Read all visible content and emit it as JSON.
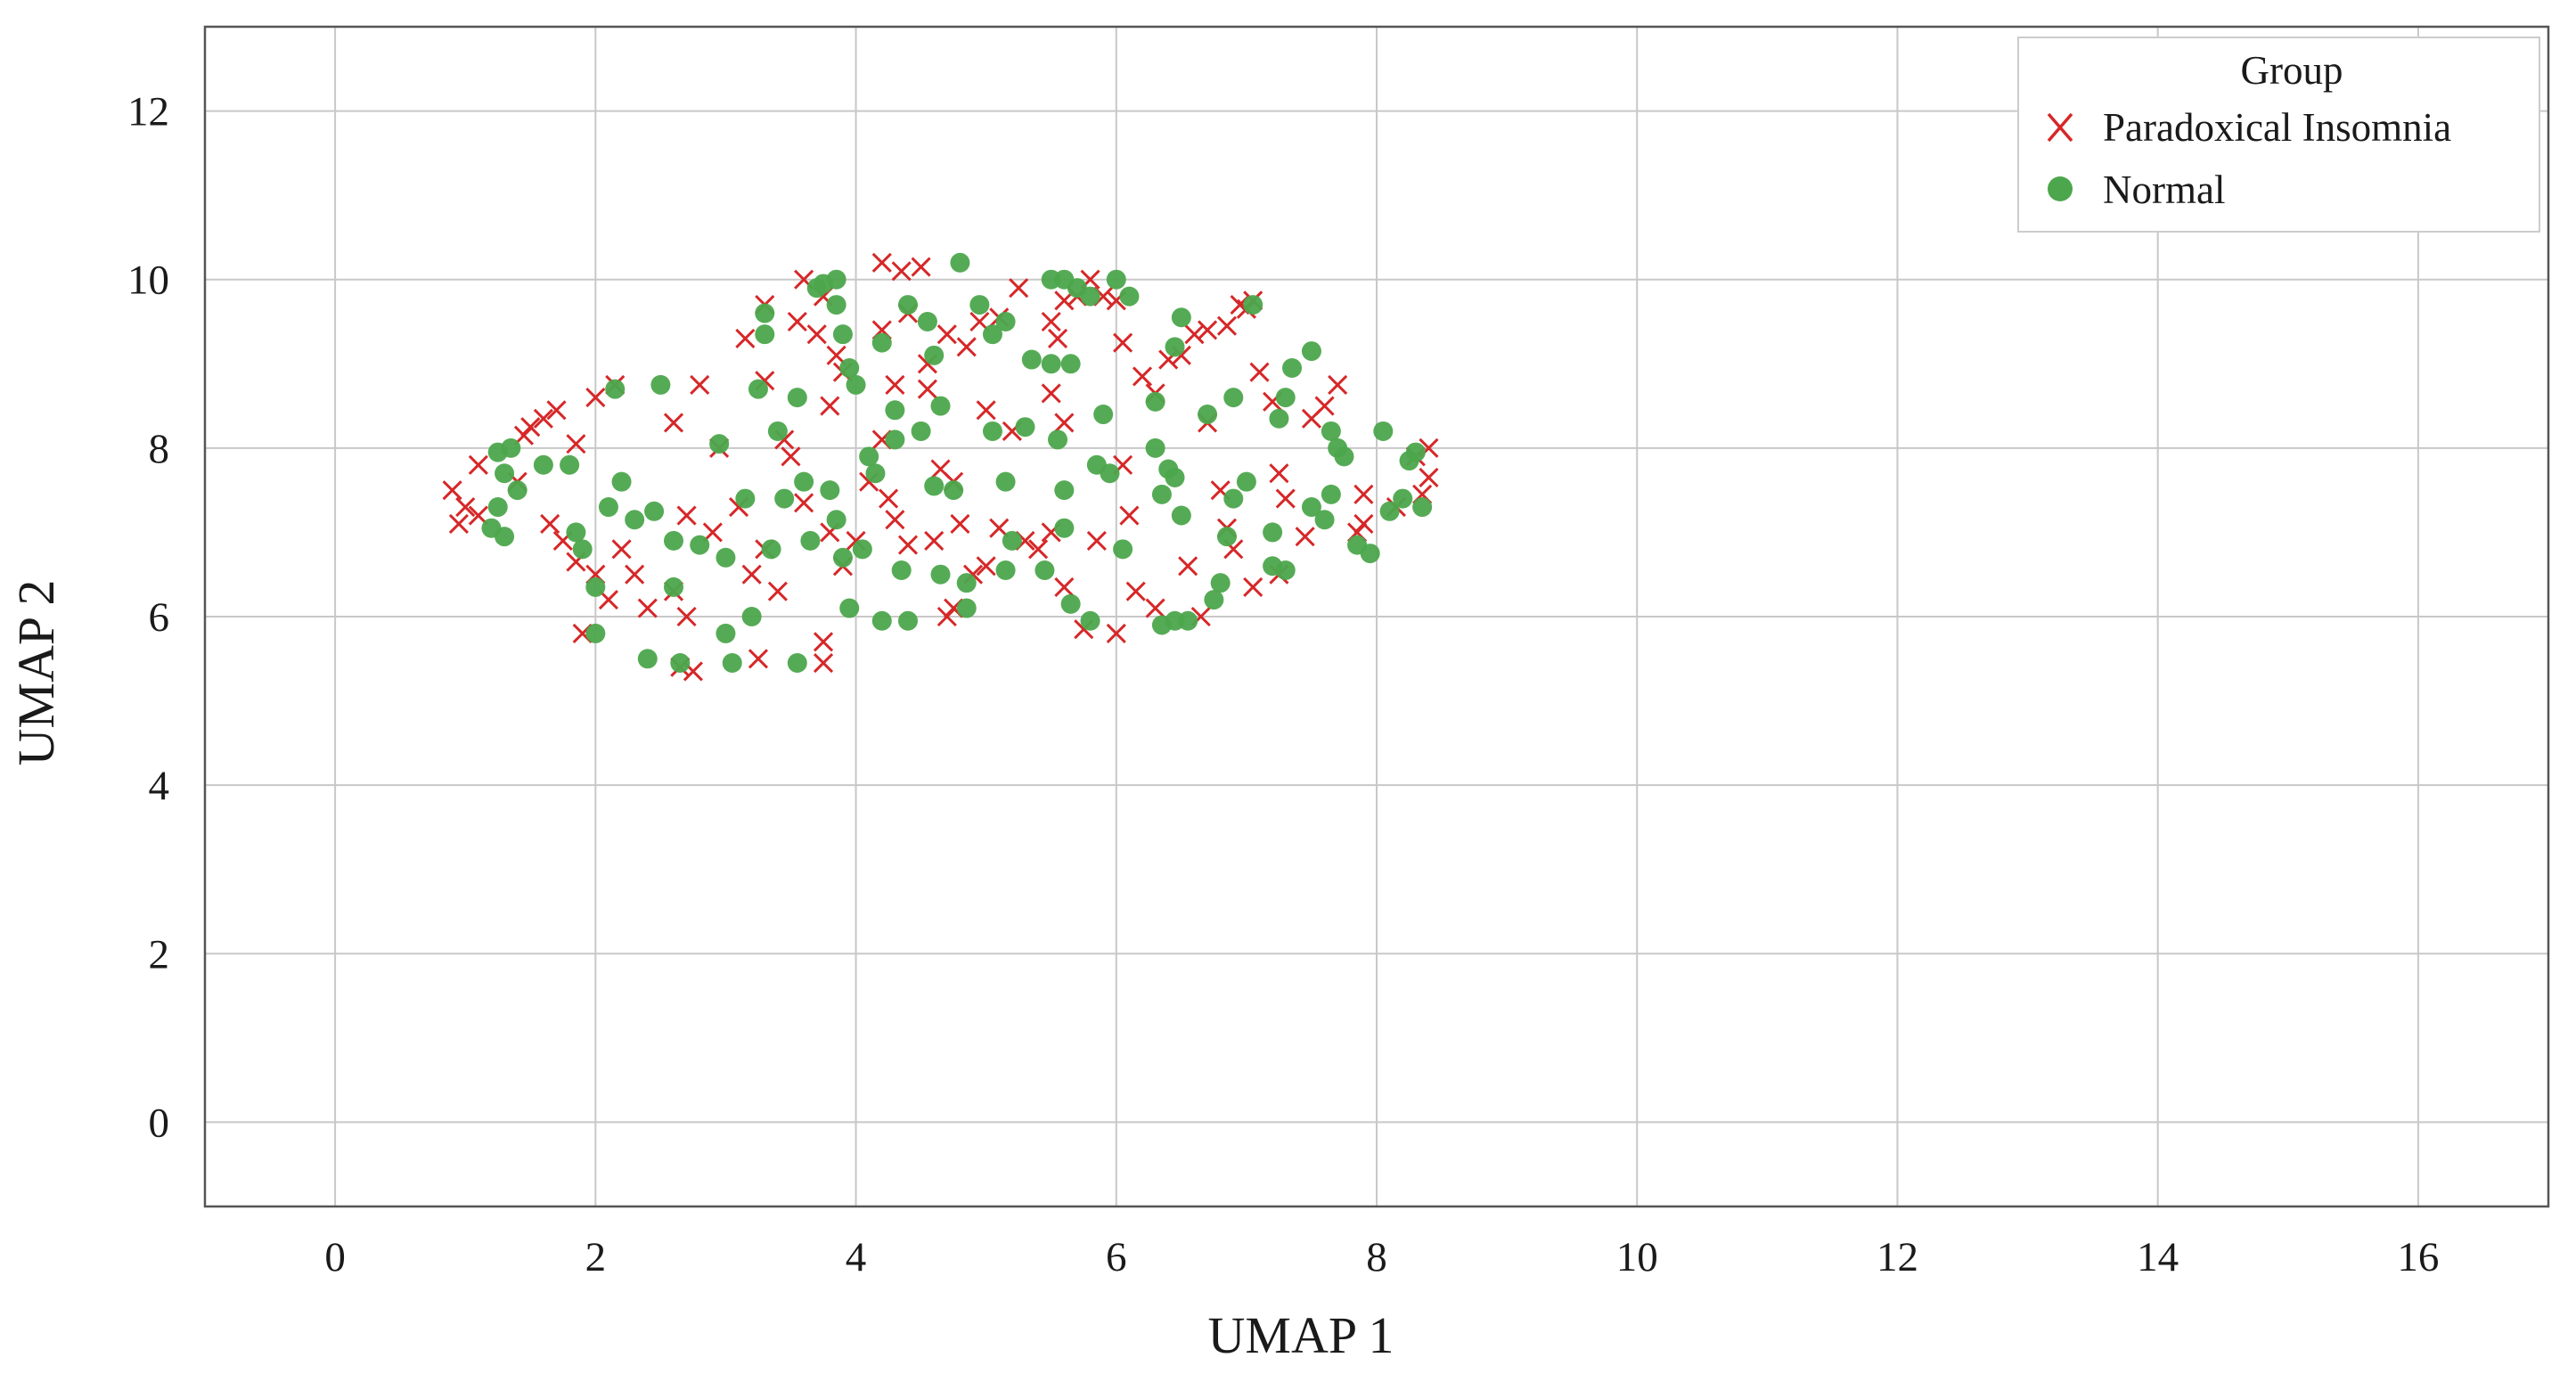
{
  "chart_data": {
    "type": "scatter",
    "title": "",
    "xlabel": "UMAP 1",
    "ylabel": "UMAP 2",
    "xlim": [
      -1,
      17
    ],
    "ylim": [
      -1,
      13
    ],
    "xticks": [
      0,
      2,
      4,
      6,
      8,
      10,
      12,
      14,
      16
    ],
    "yticks": [
      0,
      2,
      4,
      6,
      8,
      10,
      12
    ],
    "grid": true,
    "legend": {
      "title": "Group",
      "placement": "top-right"
    },
    "series": [
      {
        "name": "Paradoxical Insomnia",
        "marker": "x",
        "color": "#d62728",
        "points": [
          [
            0.9,
            7.5
          ],
          [
            1.0,
            7.3
          ],
          [
            0.95,
            7.1
          ],
          [
            1.1,
            7.2
          ],
          [
            1.1,
            7.8
          ],
          [
            1.4,
            7.6
          ],
          [
            1.45,
            8.15
          ],
          [
            1.6,
            8.35
          ],
          [
            1.7,
            8.45
          ],
          [
            1.5,
            8.25
          ],
          [
            1.85,
            8.05
          ],
          [
            2.0,
            8.6
          ],
          [
            2.15,
            8.75
          ],
          [
            1.65,
            7.1
          ],
          [
            1.75,
            6.9
          ],
          [
            1.85,
            6.65
          ],
          [
            2.0,
            6.5
          ],
          [
            1.9,
            5.8
          ],
          [
            2.1,
            6.2
          ],
          [
            2.3,
            6.5
          ],
          [
            2.2,
            6.8
          ],
          [
            2.4,
            6.1
          ],
          [
            2.6,
            6.3
          ],
          [
            2.7,
            6.0
          ],
          [
            2.75,
            5.35
          ],
          [
            2.65,
            5.4
          ],
          [
            2.6,
            8.3
          ],
          [
            2.8,
            8.75
          ],
          [
            2.95,
            8.0
          ],
          [
            2.7,
            7.2
          ],
          [
            2.9,
            7.0
          ],
          [
            3.1,
            7.3
          ],
          [
            3.2,
            6.5
          ],
          [
            3.3,
            6.8
          ],
          [
            3.4,
            6.3
          ],
          [
            3.25,
            5.5
          ],
          [
            3.45,
            8.1
          ],
          [
            3.5,
            7.9
          ],
          [
            3.6,
            7.35
          ],
          [
            3.8,
            7.0
          ],
          [
            3.3,
            8.8
          ],
          [
            3.15,
            9.3
          ],
          [
            3.3,
            9.7
          ],
          [
            3.55,
            9.5
          ],
          [
            3.6,
            10.0
          ],
          [
            3.75,
            9.8
          ],
          [
            3.7,
            9.35
          ],
          [
            3.85,
            9.1
          ],
          [
            3.9,
            8.9
          ],
          [
            3.8,
            8.5
          ],
          [
            3.75,
            5.7
          ],
          [
            3.75,
            5.45
          ],
          [
            3.9,
            6.6
          ],
          [
            4.0,
            6.9
          ],
          [
            4.1,
            7.6
          ],
          [
            4.2,
            8.1
          ],
          [
            4.25,
            7.4
          ],
          [
            4.3,
            7.15
          ],
          [
            4.4,
            6.85
          ],
          [
            4.2,
            10.2
          ],
          [
            4.35,
            10.1
          ],
          [
            4.5,
            10.15
          ],
          [
            4.2,
            9.4
          ],
          [
            4.4,
            9.6
          ],
          [
            4.55,
            9.0
          ],
          [
            4.3,
            8.75
          ],
          [
            4.55,
            8.7
          ],
          [
            4.65,
            7.75
          ],
          [
            4.75,
            7.6
          ],
          [
            4.6,
            6.9
          ],
          [
            4.8,
            7.1
          ],
          [
            4.9,
            6.5
          ],
          [
            4.7,
            6.0
          ],
          [
            4.75,
            6.1
          ],
          [
            5.0,
            6.6
          ],
          [
            4.7,
            9.35
          ],
          [
            4.85,
            9.2
          ],
          [
            4.95,
            9.5
          ],
          [
            5.1,
            9.55
          ],
          [
            5.0,
            8.45
          ],
          [
            5.2,
            8.2
          ],
          [
            5.1,
            7.05
          ],
          [
            5.3,
            6.9
          ],
          [
            5.4,
            6.8
          ],
          [
            5.25,
            9.9
          ],
          [
            5.5,
            9.5
          ],
          [
            5.55,
            9.3
          ],
          [
            5.6,
            9.75
          ],
          [
            5.7,
            9.8
          ],
          [
            5.8,
            10.0
          ],
          [
            5.5,
            8.65
          ],
          [
            5.6,
            8.3
          ],
          [
            5.5,
            7.0
          ],
          [
            5.6,
            6.35
          ],
          [
            5.75,
            5.85
          ],
          [
            6.0,
            5.8
          ],
          [
            5.85,
            6.9
          ],
          [
            6.05,
            7.8
          ],
          [
            6.1,
            7.2
          ],
          [
            6.15,
            6.3
          ],
          [
            5.9,
            9.8
          ],
          [
            6.0,
            9.75
          ],
          [
            6.05,
            9.25
          ],
          [
            6.2,
            8.85
          ],
          [
            6.3,
            8.65
          ],
          [
            6.4,
            9.05
          ],
          [
            6.5,
            9.1
          ],
          [
            6.6,
            9.35
          ],
          [
            6.7,
            9.4
          ],
          [
            6.85,
            9.45
          ],
          [
            6.95,
            9.7
          ],
          [
            7.0,
            9.65
          ],
          [
            7.05,
            9.75
          ],
          [
            6.7,
            8.3
          ],
          [
            6.8,
            7.5
          ],
          [
            6.85,
            7.05
          ],
          [
            6.9,
            6.8
          ],
          [
            7.05,
            6.35
          ],
          [
            7.1,
            8.9
          ],
          [
            7.2,
            8.55
          ],
          [
            7.25,
            7.7
          ],
          [
            7.3,
            7.4
          ],
          [
            7.25,
            6.5
          ],
          [
            7.45,
            6.95
          ],
          [
            7.5,
            8.35
          ],
          [
            7.6,
            8.5
          ],
          [
            7.7,
            8.75
          ],
          [
            7.9,
            7.45
          ],
          [
            7.85,
            7.0
          ],
          [
            7.9,
            7.1
          ],
          [
            8.15,
            7.3
          ],
          [
            8.3,
            7.9
          ],
          [
            8.35,
            7.45
          ],
          [
            8.4,
            7.65
          ],
          [
            8.4,
            8.0
          ],
          [
            6.3,
            6.1
          ],
          [
            6.55,
            6.6
          ],
          [
            6.65,
            6.0
          ]
        ]
      },
      {
        "name": "Normal",
        "marker": "o",
        "color": "#4ca64c",
        "points": [
          [
            1.25,
            7.95
          ],
          [
            1.3,
            7.7
          ],
          [
            1.35,
            8.0
          ],
          [
            1.25,
            7.3
          ],
          [
            1.3,
            6.95
          ],
          [
            1.2,
            7.05
          ],
          [
            1.4,
            7.5
          ],
          [
            1.6,
            7.8
          ],
          [
            1.8,
            7.8
          ],
          [
            1.85,
            7.0
          ],
          [
            1.9,
            6.8
          ],
          [
            2.0,
            6.35
          ],
          [
            2.0,
            5.8
          ],
          [
            2.1,
            7.3
          ],
          [
            2.2,
            7.6
          ],
          [
            2.15,
            8.7
          ],
          [
            2.3,
            7.15
          ],
          [
            2.45,
            7.25
          ],
          [
            2.5,
            8.75
          ],
          [
            2.6,
            6.9
          ],
          [
            2.6,
            6.35
          ],
          [
            2.4,
            5.5
          ],
          [
            2.65,
            5.45
          ],
          [
            2.8,
            6.85
          ],
          [
            2.95,
            8.05
          ],
          [
            3.0,
            5.8
          ],
          [
            3.05,
            5.45
          ],
          [
            3.0,
            6.7
          ],
          [
            3.15,
            7.4
          ],
          [
            3.2,
            6.0
          ],
          [
            3.25,
            8.7
          ],
          [
            3.3,
            9.35
          ],
          [
            3.3,
            9.6
          ],
          [
            3.35,
            6.8
          ],
          [
            3.4,
            8.2
          ],
          [
            3.45,
            7.4
          ],
          [
            3.55,
            8.6
          ],
          [
            3.6,
            7.6
          ],
          [
            3.65,
            6.9
          ],
          [
            3.55,
            5.45
          ],
          [
            3.7,
            9.9
          ],
          [
            3.75,
            9.95
          ],
          [
            3.85,
            10.0
          ],
          [
            3.85,
            9.7
          ],
          [
            3.9,
            9.35
          ],
          [
            3.95,
            8.95
          ],
          [
            4.0,
            8.75
          ],
          [
            3.8,
            7.5
          ],
          [
            3.85,
            7.15
          ],
          [
            3.9,
            6.7
          ],
          [
            3.95,
            6.1
          ],
          [
            4.05,
            6.8
          ],
          [
            4.1,
            7.9
          ],
          [
            4.15,
            7.7
          ],
          [
            4.2,
            9.25
          ],
          [
            4.3,
            8.45
          ],
          [
            4.3,
            8.1
          ],
          [
            4.35,
            6.55
          ],
          [
            4.2,
            5.95
          ],
          [
            4.4,
            5.95
          ],
          [
            4.4,
            9.7
          ],
          [
            4.55,
            9.5
          ],
          [
            4.6,
            9.1
          ],
          [
            4.65,
            8.5
          ],
          [
            4.5,
            8.2
          ],
          [
            4.6,
            7.55
          ],
          [
            4.75,
            7.5
          ],
          [
            4.65,
            6.5
          ],
          [
            4.85,
            6.1
          ],
          [
            4.85,
            6.4
          ],
          [
            4.8,
            10.2
          ],
          [
            4.95,
            9.7
          ],
          [
            5.05,
            9.35
          ],
          [
            5.15,
            9.5
          ],
          [
            5.05,
            8.2
          ],
          [
            5.15,
            7.6
          ],
          [
            5.2,
            6.9
          ],
          [
            5.15,
            6.55
          ],
          [
            5.3,
            8.25
          ],
          [
            5.35,
            9.05
          ],
          [
            5.5,
            9.0
          ],
          [
            5.55,
            8.1
          ],
          [
            5.6,
            7.5
          ],
          [
            5.6,
            7.05
          ],
          [
            5.5,
            10.0
          ],
          [
            5.6,
            10.0
          ],
          [
            5.7,
            9.9
          ],
          [
            5.8,
            9.8
          ],
          [
            5.65,
            9.0
          ],
          [
            5.65,
            6.15
          ],
          [
            5.8,
            5.95
          ],
          [
            5.9,
            8.4
          ],
          [
            5.85,
            7.8
          ],
          [
            5.95,
            7.7
          ],
          [
            6.0,
            10.0
          ],
          [
            6.1,
            9.8
          ],
          [
            6.3,
            8.55
          ],
          [
            6.3,
            8.0
          ],
          [
            6.4,
            7.75
          ],
          [
            6.35,
            7.45
          ],
          [
            6.45,
            7.65
          ],
          [
            6.5,
            7.2
          ],
          [
            6.35,
            5.9
          ],
          [
            6.45,
            5.95
          ],
          [
            6.55,
            5.95
          ],
          [
            6.45,
            9.2
          ],
          [
            6.5,
            9.55
          ],
          [
            6.7,
            8.4
          ],
          [
            6.75,
            6.2
          ],
          [
            6.8,
            6.4
          ],
          [
            6.85,
            6.95
          ],
          [
            6.9,
            7.4
          ],
          [
            7.0,
            7.6
          ],
          [
            7.05,
            9.7
          ],
          [
            6.9,
            8.6
          ],
          [
            7.2,
            7.0
          ],
          [
            7.2,
            6.6
          ],
          [
            7.3,
            6.55
          ],
          [
            7.25,
            8.35
          ],
          [
            7.3,
            8.6
          ],
          [
            7.35,
            8.95
          ],
          [
            7.5,
            9.15
          ],
          [
            7.5,
            7.3
          ],
          [
            7.6,
            7.15
          ],
          [
            7.65,
            7.45
          ],
          [
            7.65,
            8.2
          ],
          [
            7.7,
            8.0
          ],
          [
            7.75,
            7.9
          ],
          [
            7.85,
            6.85
          ],
          [
            7.95,
            6.75
          ],
          [
            8.05,
            8.2
          ],
          [
            8.1,
            7.25
          ],
          [
            8.2,
            7.4
          ],
          [
            8.25,
            7.85
          ],
          [
            8.3,
            7.95
          ],
          [
            8.35,
            7.3
          ],
          [
            5.45,
            6.55
          ],
          [
            6.05,
            6.8
          ]
        ]
      }
    ]
  },
  "colors": {
    "background": "#ffffff",
    "grid": "#c8c8c8",
    "frame": "#555555"
  }
}
